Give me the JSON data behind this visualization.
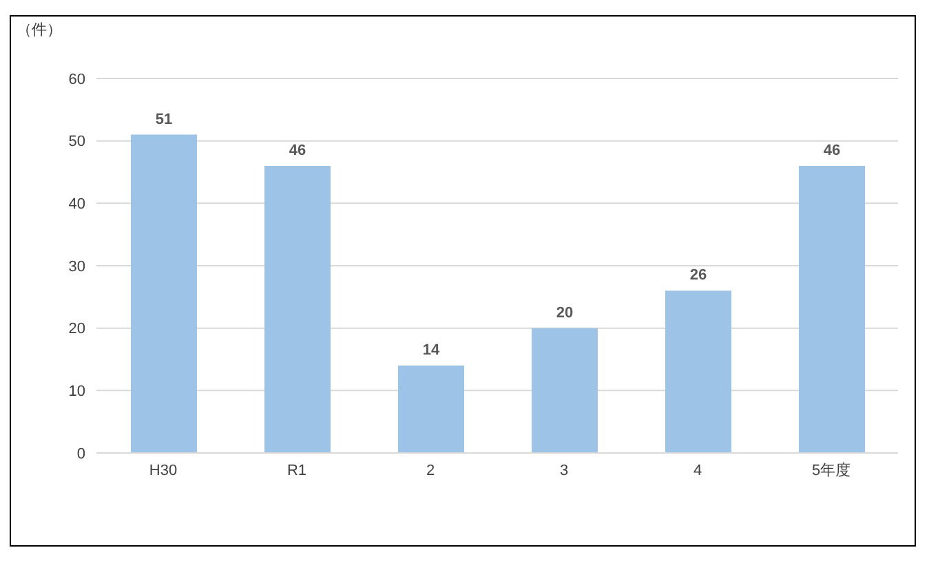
{
  "chart_data": {
    "type": "bar",
    "ylabel": "（件）",
    "categories": [
      "H30",
      "R1",
      "2",
      "3",
      "4",
      "5年度"
    ],
    "values": [
      51,
      46,
      14,
      20,
      26,
      46
    ],
    "color": "#9dc3e6",
    "ylim": [
      0,
      60
    ],
    "yticks": [
      0,
      10,
      20,
      30,
      40,
      50,
      60
    ],
    "grid": "y",
    "data_labels": true
  }
}
